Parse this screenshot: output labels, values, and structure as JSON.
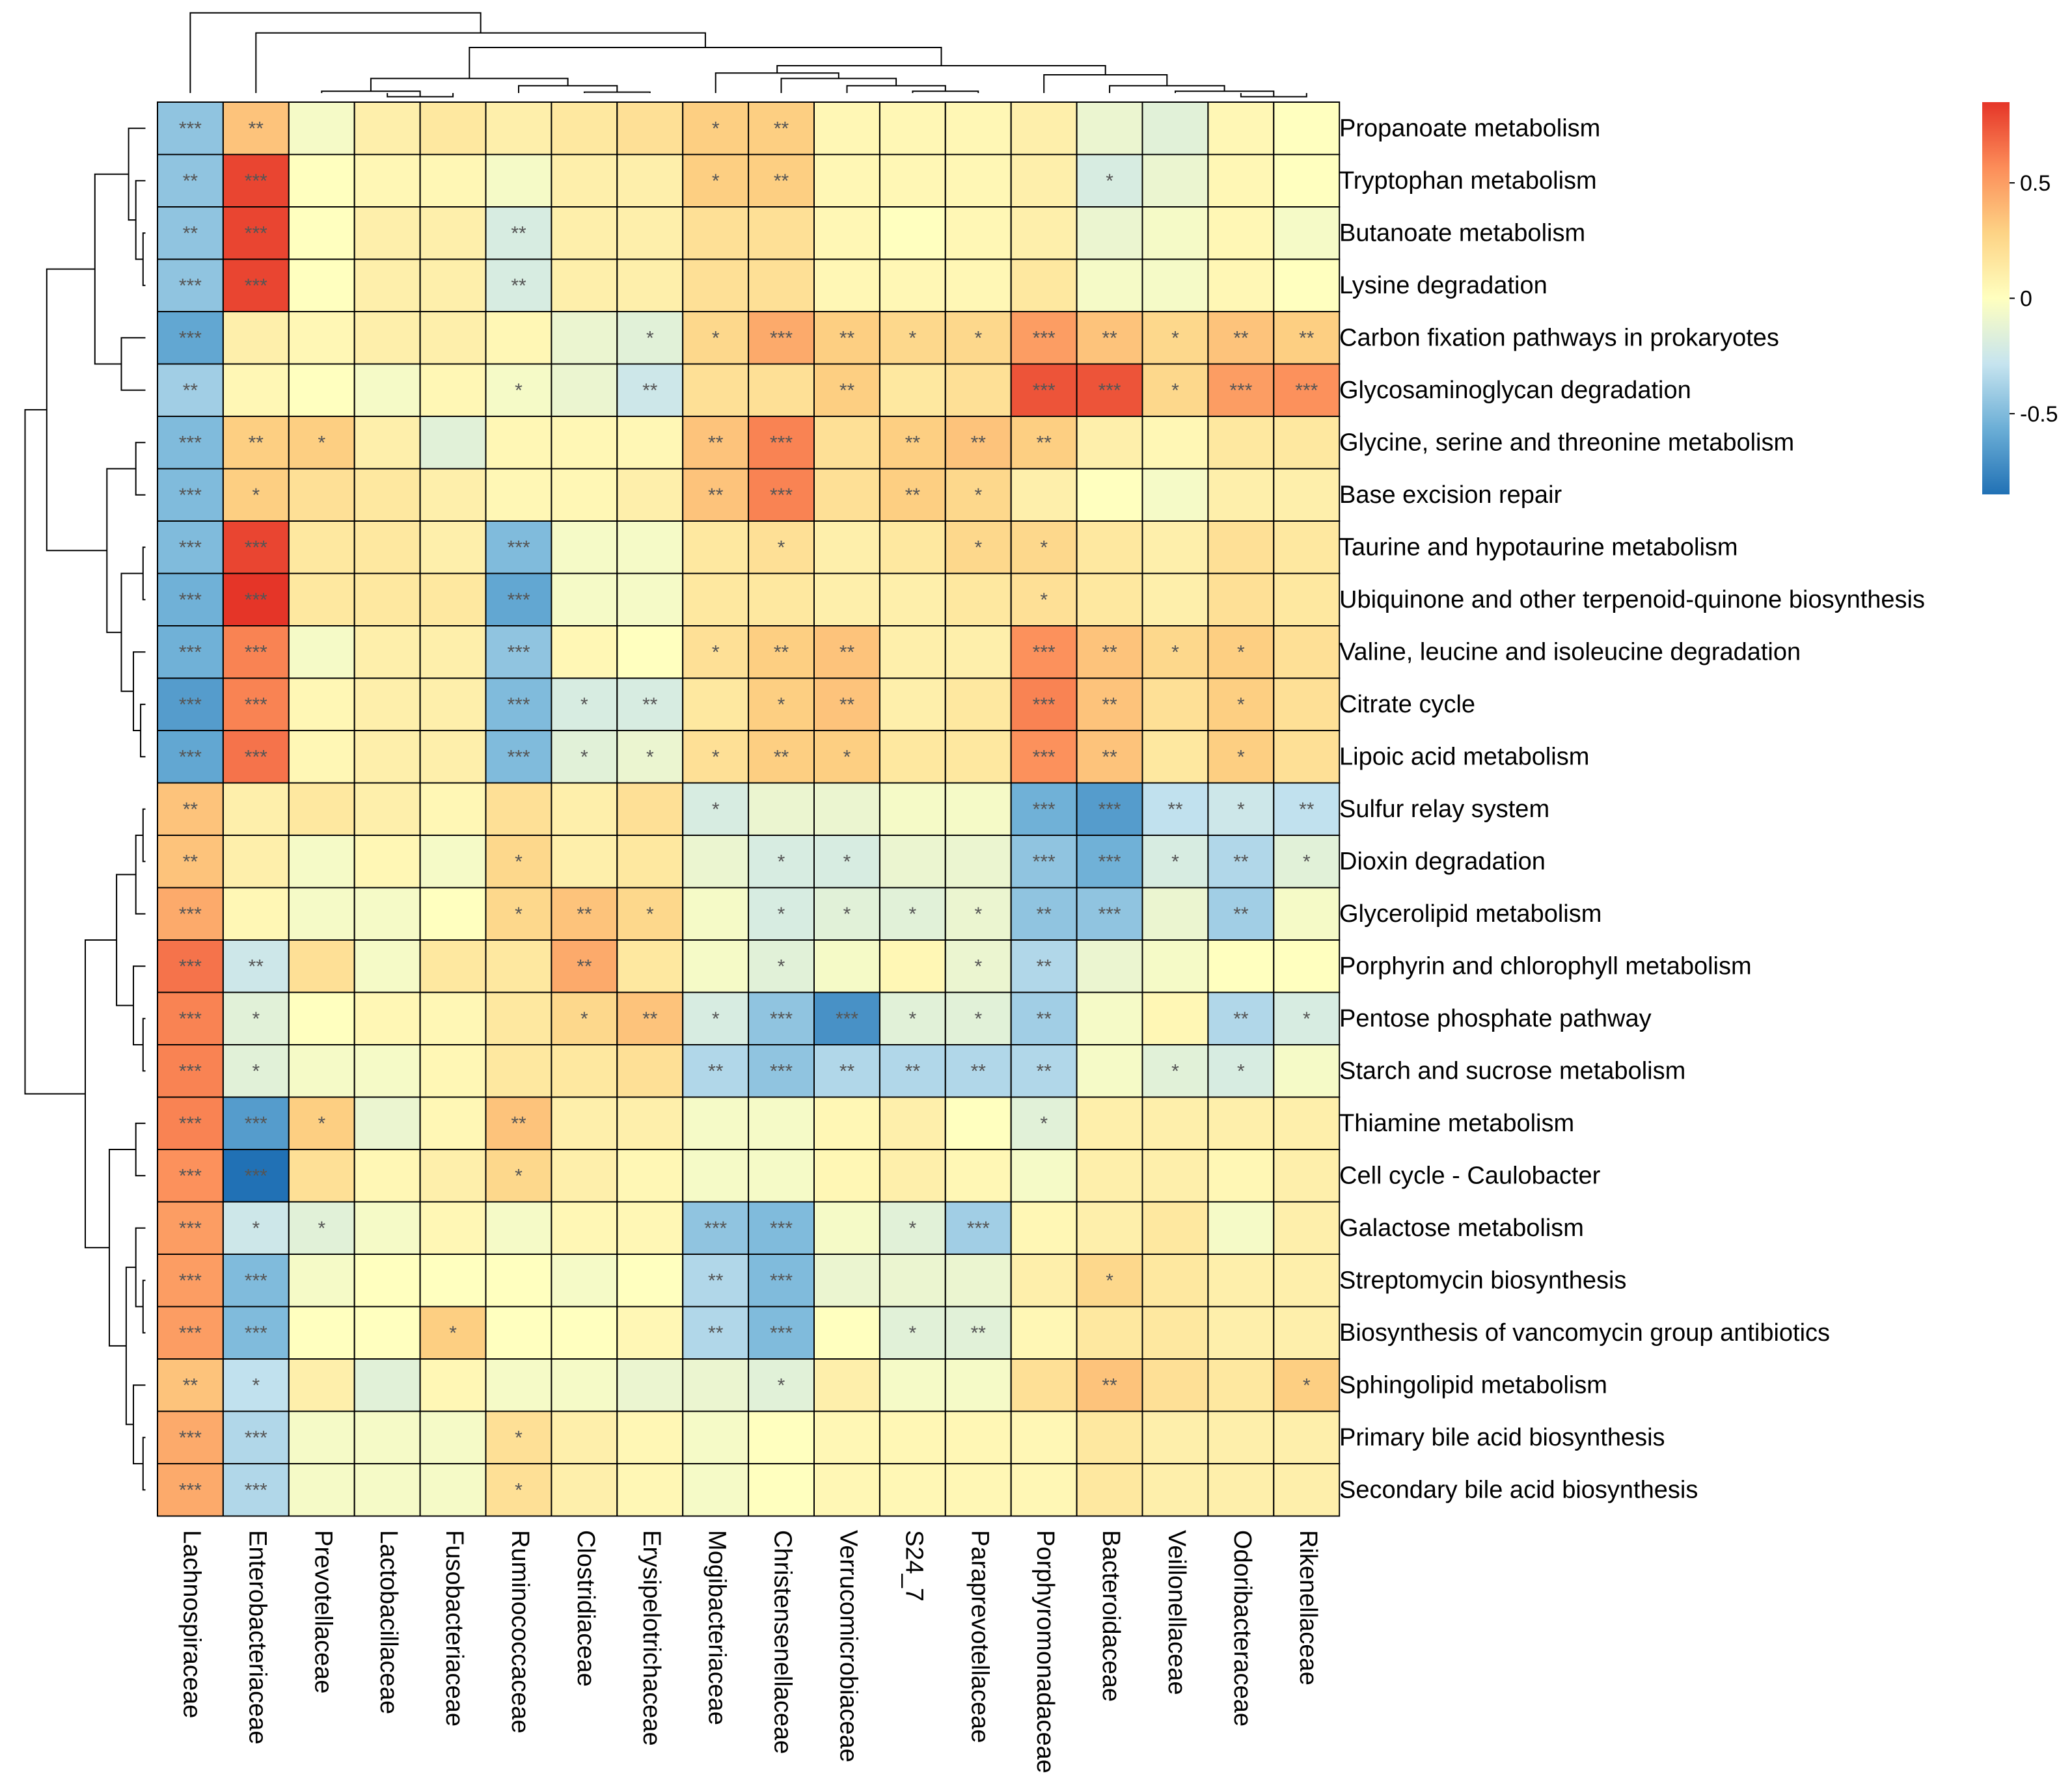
{
  "chart_data": {
    "type": "heatmap",
    "title": "",
    "columns": [
      "Lachnospiraceae",
      "Enterobacteriaceae",
      "Prevotellaceae",
      "Lactobacillaceae",
      "Fusobacteriaceae",
      "Ruminococcaceae",
      "Clostridiaceae",
      "Erysipelotrichaceae",
      "Mogibacteriaceae",
      "Christensenellaceae",
      "Verrucomicrobiaceae",
      "S24_7",
      "Paraprevotellaceae",
      "Porphyromonadaceae",
      "Bacteroidaceae",
      "Veillonellaceae",
      "Odoribacteraceae",
      "Rikenellaceae"
    ],
    "rows": [
      "Propanoate metabolism",
      "Tryptophan metabolism",
      "Butanoate metabolism",
      "Lysine degradation",
      "Carbon fixation pathways in prokaryotes",
      "Glycosaminoglycan degradation",
      "Glycine, serine and threonine metabolism",
      "Base excision repair",
      "Taurine and hypotaurine metabolism",
      "Ubiquinone and other terpenoid-quinone biosynthesis",
      "Valine, leucine and isoleucine degradation",
      "Citrate cycle",
      "Lipoic acid metabolism",
      "Sulfur relay system",
      "Dioxin degradation",
      "Glycerolipid metabolism",
      "Porphyrin and chlorophyll metabolism",
      "Pentose phosphate pathway",
      "Starch and sucrose metabolism",
      "Thiamine metabolism",
      "Cell cycle - Caulobacter",
      "Galactose metabolism",
      "Streptomycin biosynthesis",
      "Biosynthesis of vancomycin group antibiotics",
      "Sphingolipid metabolism",
      "Primary bile acid biosynthesis",
      "Secondary bile acid biosynthesis"
    ],
    "values": [
      [
        -0.45,
        0.35,
        -0.05,
        0.1,
        0.15,
        0.1,
        0.15,
        0.2,
        0.3,
        0.3,
        0.05,
        0.05,
        0.05,
        0.1,
        -0.1,
        -0.15,
        0.05,
        0.0
      ],
      [
        -0.45,
        0.8,
        0.0,
        0.05,
        0.05,
        -0.05,
        0.1,
        0.1,
        0.3,
        0.3,
        0.05,
        0.05,
        0.05,
        0.1,
        -0.2,
        -0.1,
        0.05,
        0.0
      ],
      [
        -0.45,
        0.8,
        0.0,
        0.1,
        0.1,
        -0.2,
        0.1,
        0.1,
        0.2,
        0.2,
        0.05,
        0.0,
        0.05,
        0.1,
        -0.1,
        -0.05,
        0.05,
        -0.05
      ],
      [
        -0.45,
        0.8,
        0.0,
        0.1,
        0.1,
        -0.2,
        0.1,
        0.1,
        0.2,
        0.2,
        0.05,
        0.05,
        0.05,
        0.15,
        -0.05,
        -0.05,
        0.05,
        0.0
      ],
      [
        -0.6,
        0.1,
        0.05,
        0.1,
        0.1,
        0.05,
        -0.1,
        -0.15,
        0.25,
        0.45,
        0.3,
        0.25,
        0.25,
        0.5,
        0.35,
        0.25,
        0.35,
        0.3
      ],
      [
        -0.4,
        0.05,
        0.0,
        -0.05,
        0.05,
        -0.05,
        -0.1,
        -0.25,
        0.2,
        0.2,
        0.3,
        0.15,
        0.2,
        0.75,
        0.75,
        0.25,
        0.5,
        0.55
      ],
      [
        -0.5,
        0.3,
        0.3,
        0.1,
        -0.15,
        0.05,
        0.05,
        0.05,
        0.35,
        0.6,
        0.2,
        0.3,
        0.35,
        0.3,
        0.1,
        0.05,
        0.15,
        0.15
      ],
      [
        -0.5,
        0.3,
        0.2,
        0.15,
        0.1,
        0.05,
        0.05,
        0.1,
        0.35,
        0.6,
        0.2,
        0.3,
        0.25,
        0.1,
        0.0,
        -0.05,
        0.1,
        0.1
      ],
      [
        -0.5,
        0.8,
        0.15,
        0.15,
        0.1,
        -0.5,
        -0.05,
        -0.05,
        0.15,
        0.2,
        0.1,
        0.15,
        0.25,
        0.25,
        0.15,
        0.1,
        0.2,
        0.15
      ],
      [
        -0.55,
        0.85,
        0.15,
        0.15,
        0.15,
        -0.6,
        -0.05,
        -0.05,
        0.15,
        0.15,
        0.1,
        0.1,
        0.15,
        0.2,
        0.15,
        0.1,
        0.2,
        0.15
      ],
      [
        -0.55,
        0.6,
        -0.05,
        0.1,
        0.1,
        -0.45,
        0.05,
        0.0,
        0.2,
        0.3,
        0.35,
        0.1,
        0.1,
        0.55,
        0.35,
        0.25,
        0.3,
        0.2
      ],
      [
        -0.65,
        0.6,
        0.05,
        0.1,
        0.1,
        -0.5,
        -0.2,
        -0.2,
        0.15,
        0.3,
        0.35,
        0.1,
        0.15,
        0.6,
        0.35,
        0.2,
        0.3,
        0.2
      ],
      [
        -0.6,
        0.65,
        0.05,
        0.1,
        0.1,
        -0.5,
        -0.15,
        -0.1,
        0.2,
        0.3,
        0.3,
        0.15,
        0.15,
        0.55,
        0.35,
        0.15,
        0.3,
        0.2
      ],
      [
        0.35,
        0.1,
        0.15,
        0.1,
        0.05,
        0.2,
        0.1,
        0.2,
        -0.2,
        -0.1,
        -0.1,
        -0.05,
        -0.05,
        -0.55,
        -0.65,
        -0.3,
        -0.25,
        -0.3
      ],
      [
        0.35,
        0.1,
        -0.05,
        0.05,
        -0.05,
        0.25,
        0.1,
        0.15,
        -0.1,
        -0.2,
        -0.2,
        -0.1,
        -0.1,
        -0.45,
        -0.55,
        -0.2,
        -0.35,
        -0.15
      ],
      [
        0.45,
        0.05,
        -0.05,
        -0.05,
        0.0,
        0.25,
        0.35,
        0.25,
        -0.05,
        -0.2,
        -0.15,
        -0.15,
        -0.1,
        -0.45,
        -0.45,
        -0.1,
        -0.4,
        -0.05
      ],
      [
        0.65,
        -0.25,
        0.2,
        -0.05,
        0.15,
        0.15,
        0.45,
        0.15,
        -0.05,
        -0.15,
        -0.05,
        0.05,
        -0.1,
        -0.35,
        -0.1,
        -0.05,
        0.0,
        0.0
      ],
      [
        0.6,
        -0.15,
        0.0,
        0.05,
        0.05,
        0.15,
        0.25,
        0.35,
        -0.2,
        -0.45,
        -0.7,
        -0.15,
        -0.15,
        -0.4,
        -0.05,
        0.05,
        -0.35,
        -0.2
      ],
      [
        0.6,
        -0.15,
        -0.05,
        -0.05,
        0.05,
        0.15,
        0.15,
        0.2,
        -0.35,
        -0.45,
        -0.35,
        -0.35,
        -0.35,
        -0.35,
        -0.05,
        -0.15,
        -0.2,
        -0.05
      ],
      [
        0.6,
        -0.65,
        0.3,
        -0.1,
        0.05,
        0.35,
        0.1,
        0.1,
        -0.05,
        -0.05,
        0.05,
        0.1,
        0.0,
        -0.15,
        0.1,
        0.1,
        0.1,
        0.1
      ],
      [
        0.55,
        -0.85,
        0.2,
        0.05,
        0.1,
        0.25,
        0.1,
        0.05,
        -0.05,
        -0.05,
        0.05,
        0.1,
        0.05,
        -0.05,
        0.1,
        0.1,
        0.05,
        0.1
      ],
      [
        0.5,
        -0.25,
        -0.15,
        -0.05,
        0.05,
        -0.05,
        0.05,
        0.05,
        -0.45,
        -0.5,
        -0.05,
        -0.15,
        -0.4,
        0.05,
        0.1,
        0.15,
        -0.05,
        0.1
      ],
      [
        0.5,
        -0.5,
        -0.05,
        0.0,
        0.0,
        0.0,
        -0.05,
        0.0,
        -0.35,
        -0.5,
        -0.1,
        -0.1,
        -0.1,
        0.1,
        0.25,
        0.15,
        0.1,
        0.1
      ],
      [
        0.5,
        -0.5,
        0.0,
        0.0,
        0.3,
        0.0,
        0.0,
        0.05,
        -0.35,
        -0.5,
        0.0,
        -0.15,
        -0.15,
        0.05,
        0.15,
        0.15,
        0.1,
        0.1
      ],
      [
        0.35,
        -0.3,
        0.1,
        -0.15,
        0.05,
        -0.05,
        -0.05,
        -0.1,
        -0.1,
        -0.15,
        0.1,
        -0.05,
        -0.05,
        0.2,
        0.35,
        0.2,
        0.15,
        0.3
      ],
      [
        0.45,
        -0.35,
        -0.05,
        -0.05,
        -0.05,
        0.2,
        0.1,
        0.05,
        -0.05,
        0.0,
        0.05,
        0.05,
        0.05,
        0.05,
        0.15,
        0.1,
        0.1,
        0.1
      ],
      [
        0.45,
        -0.35,
        -0.05,
        -0.05,
        -0.05,
        0.2,
        0.1,
        0.05,
        -0.05,
        0.0,
        0.05,
        0.05,
        0.05,
        0.05,
        0.15,
        0.1,
        0.1,
        0.1
      ]
    ],
    "significance": [
      [
        "***",
        "**",
        "",
        "",
        "",
        "",
        "",
        "",
        "*",
        "**",
        "",
        "",
        "",
        "",
        "",
        "",
        "",
        ""
      ],
      [
        "**",
        "***",
        "",
        "",
        "",
        "",
        "",
        "",
        "*",
        "**",
        "",
        "",
        "",
        "",
        "*",
        "",
        "",
        ""
      ],
      [
        "**",
        "***",
        "",
        "",
        "",
        "**",
        "",
        "",
        "",
        "",
        "",
        "",
        "",
        "",
        "",
        "",
        "",
        ""
      ],
      [
        "***",
        "***",
        "",
        "",
        "",
        "**",
        "",
        "",
        "",
        "",
        "",
        "",
        "",
        "",
        "",
        "",
        "",
        ""
      ],
      [
        "***",
        "",
        "",
        "",
        "",
        "",
        "",
        "*",
        "*",
        "***",
        "**",
        "*",
        "*",
        "***",
        "**",
        "*",
        "**",
        "**"
      ],
      [
        "**",
        "",
        "",
        "",
        "",
        "*",
        "",
        "**",
        "",
        "",
        "**",
        "",
        "",
        "***",
        "***",
        "*",
        "***",
        "***"
      ],
      [
        "***",
        "**",
        "*",
        "",
        "",
        "",
        "",
        "",
        "**",
        "***",
        "",
        "**",
        "**",
        "**",
        "",
        "",
        "",
        ""
      ],
      [
        "***",
        "*",
        "",
        "",
        "",
        "",
        "",
        "",
        "**",
        "***",
        "",
        "**",
        "*",
        "",
        "",
        "",
        "",
        ""
      ],
      [
        "***",
        "***",
        "",
        "",
        "",
        "***",
        "",
        "",
        "",
        "*",
        "",
        "",
        "*",
        "*",
        "",
        "",
        "",
        ""
      ],
      [
        "***",
        "***",
        "",
        "",
        "",
        "***",
        "",
        "",
        "",
        "",
        "",
        "",
        "",
        "*",
        "",
        "",
        "",
        ""
      ],
      [
        "***",
        "***",
        "",
        "",
        "",
        "***",
        "",
        "",
        "*",
        "**",
        "**",
        "",
        "",
        "***",
        "**",
        "*",
        "*",
        ""
      ],
      [
        "***",
        "***",
        "",
        "",
        "",
        "***",
        "*",
        "**",
        "",
        "*",
        "**",
        "",
        "",
        "***",
        "**",
        "",
        "*",
        ""
      ],
      [
        "***",
        "***",
        "",
        "",
        "",
        "***",
        "*",
        "*",
        "*",
        "**",
        "*",
        "",
        "",
        "***",
        "**",
        "",
        "*",
        ""
      ],
      [
        "**",
        "",
        "",
        "",
        "",
        "",
        "",
        "",
        "*",
        "",
        "",
        "",
        "",
        "***",
        "***",
        "**",
        "*",
        "**"
      ],
      [
        "**",
        "",
        "",
        "",
        "",
        "*",
        "",
        "",
        "",
        "*",
        "*",
        "",
        "",
        "***",
        "***",
        "*",
        "**",
        "*"
      ],
      [
        "***",
        "",
        "",
        "",
        "",
        "*",
        "**",
        "*",
        "",
        "*",
        "*",
        "*",
        "*",
        "**",
        "***",
        "",
        "**",
        ""
      ],
      [
        "***",
        "**",
        "",
        "",
        "",
        "",
        "**",
        "",
        "",
        "*",
        "",
        "",
        "*",
        "**",
        "",
        "",
        "",
        ""
      ],
      [
        "***",
        "*",
        "",
        "",
        "",
        "",
        "*",
        "**",
        "*",
        "***",
        "***",
        "*",
        "*",
        "**",
        "",
        "",
        "**",
        "*"
      ],
      [
        "***",
        "*",
        "",
        "",
        "",
        "",
        "",
        "",
        "**",
        "***",
        "**",
        "**",
        "**",
        "**",
        "",
        "*",
        "*",
        ""
      ],
      [
        "***",
        "***",
        "*",
        "",
        "",
        "**",
        "",
        "",
        "",
        "",
        "",
        "",
        "",
        "*",
        "",
        "",
        "",
        ""
      ],
      [
        "***",
        "***",
        "",
        "",
        "",
        "*",
        "",
        "",
        "",
        "",
        "",
        "",
        "",
        "",
        "",
        "",
        "",
        ""
      ],
      [
        "***",
        "*",
        "*",
        "",
        "",
        "",
        "",
        "",
        "***",
        "***",
        "",
        "*",
        "***",
        "",
        "",
        "",
        "",
        ""
      ],
      [
        "***",
        "***",
        "",
        "",
        "",
        "",
        "",
        "",
        "**",
        "***",
        "",
        "",
        "",
        "",
        "*",
        "",
        "",
        ""
      ],
      [
        "***",
        "***",
        "",
        "",
        "*",
        "",
        "",
        "",
        "**",
        "***",
        "",
        "*",
        "**",
        "",
        "",
        "",
        "",
        ""
      ],
      [
        "**",
        "*",
        "",
        "",
        "",
        "",
        "",
        "",
        "",
        "*",
        "",
        "",
        "",
        "",
        "**",
        "",
        "",
        "*"
      ],
      [
        "***",
        "***",
        "",
        "",
        "",
        "*",
        "",
        "",
        "",
        "",
        "",
        "",
        "",
        "",
        "",
        "",
        "",
        ""
      ],
      [
        "***",
        "***",
        "",
        "",
        "",
        "*",
        "",
        "",
        "",
        "",
        "",
        "",
        "",
        "",
        "",
        "",
        "",
        ""
      ]
    ],
    "color_scale": {
      "min": -0.85,
      "max": 0.85,
      "ticks": [
        0.5,
        0,
        -0.5
      ],
      "tick_labels": [
        "0.5",
        "0",
        "-0.5"
      ],
      "colors": [
        "#2171b5",
        "#6baed6",
        "#c6e4ef",
        "#ffffbf",
        "#fdd385",
        "#fc8d59",
        "#e53528"
      ]
    },
    "row_dendrogram": true,
    "column_dendrogram": true,
    "legend": "top-right"
  }
}
